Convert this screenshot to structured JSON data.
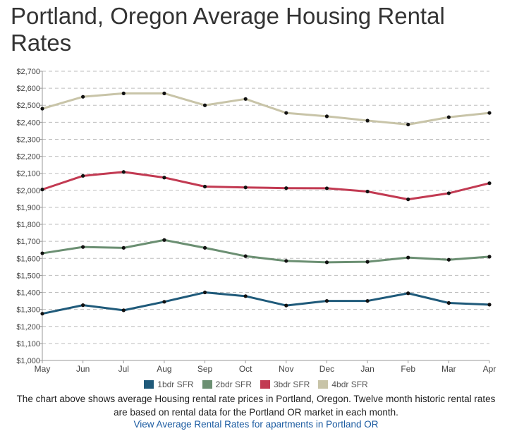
{
  "title": "Portland, Oregon Average Housing Rental Rates",
  "caption": "The chart above shows average Housing rental rate prices in Portland, Oregon. Twelve month historic rental rates are based on rental data for the Portland OR market in each month.",
  "caption_link": "View Average Rental Rates for apartments in Portland OR",
  "chart_data": {
    "type": "line",
    "title": "Portland, Oregon Average Housing Rental Rates",
    "categories": [
      "May",
      "Jun",
      "Jul",
      "Aug",
      "Sep",
      "Oct",
      "Nov",
      "Dec",
      "Jan",
      "Feb",
      "Mar",
      "Apr"
    ],
    "ylim": [
      1000,
      2700
    ],
    "ytick_step": 100,
    "ytick_labels": [
      "$1,000",
      "$1,100",
      "$1,200",
      "$1,300",
      "$1,400",
      "$1,500",
      "$1,600",
      "$1,700",
      "$1,800",
      "$1,900",
      "$2,000",
      "$2,100",
      "$2,200",
      "$2,300",
      "$2,400",
      "$2,500",
      "$2,600",
      "$2,700"
    ],
    "grid": true,
    "legend_position": "bottom",
    "series": [
      {
        "name": "1bdr SFR",
        "color": "#1f5a7a",
        "values": [
          1275,
          1325,
          1295,
          1345,
          1400,
          1378,
          1323,
          1350,
          1350,
          1395,
          1338,
          1328
        ]
      },
      {
        "name": "2bdr SFR",
        "color": "#6b8f72",
        "values": [
          1630,
          1667,
          1662,
          1708,
          1662,
          1613,
          1585,
          1577,
          1580,
          1605,
          1592,
          1610
        ]
      },
      {
        "name": "3bdr SFR",
        "color": "#c23a52",
        "values": [
          2005,
          2085,
          2108,
          2075,
          2022,
          2017,
          2013,
          2012,
          1993,
          1947,
          1983,
          2042
        ]
      },
      {
        "name": "4bdr SFR",
        "color": "#c8c4a8",
        "values": [
          2480,
          2550,
          2570,
          2570,
          2500,
          2537,
          2455,
          2435,
          2410,
          2387,
          2430,
          2455
        ]
      }
    ]
  }
}
